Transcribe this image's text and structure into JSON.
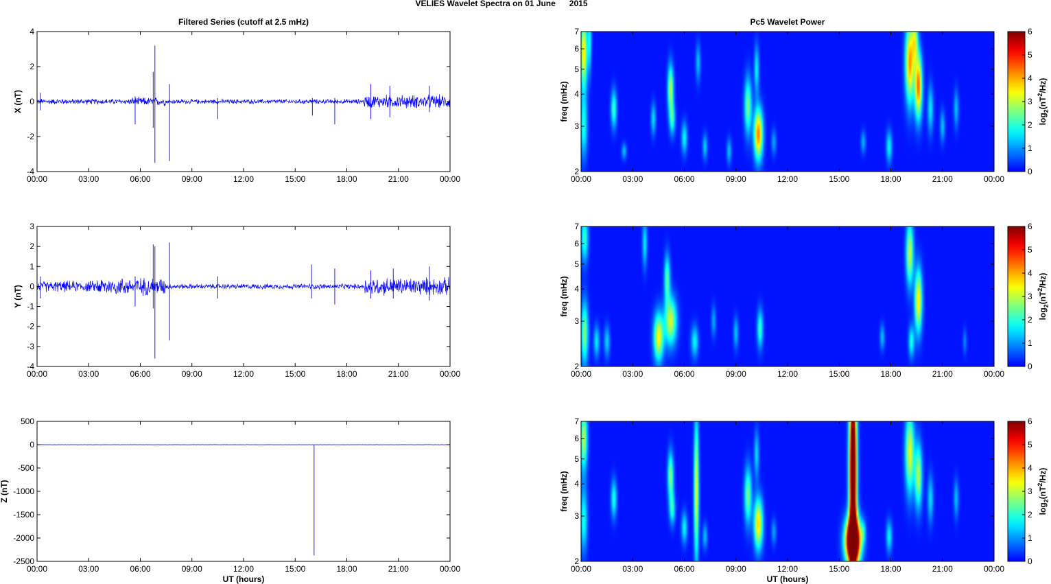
{
  "figure": {
    "title": "VELIES Wavelet Spectra on 01 June      2015",
    "left_title": "Filtered Series (cutoff at 2.5 mHz)",
    "right_title": "Pc5 Wavelet Power",
    "xlabel": "UT (hours)",
    "colors": {
      "series_line": "#0000ff",
      "spectrum_bg": "#00008f",
      "axis": "#000000"
    }
  },
  "chart_data": [
    {
      "type": "line",
      "title": "Filtered Series (cutoff at 2.5 mHz)",
      "ylabel": "X (nT)",
      "xlabel": "",
      "x_ticks": [
        "00:00",
        "03:00",
        "06:00",
        "09:00",
        "12:00",
        "15:00",
        "18:00",
        "21:00",
        "00:00"
      ],
      "xlim_hours": [
        0,
        24
      ],
      "ylim": [
        -4,
        4
      ],
      "y_ticks": [
        -4,
        -2,
        0,
        2,
        4
      ],
      "noise": [
        {
          "t0": 0,
          "t1": 5.5,
          "amp": 0.15
        },
        {
          "t0": 5.5,
          "t1": 7.5,
          "amp": 0.22
        },
        {
          "t0": 7.5,
          "t1": 19.0,
          "amp": 0.12
        },
        {
          "t0": 19.0,
          "t1": 24.0,
          "amp": 0.35
        }
      ],
      "spikes": [
        {
          "t": 0.2,
          "max": 0.5,
          "min": -0.5
        },
        {
          "t": 5.7,
          "max": 0.3,
          "min": -1.3
        },
        {
          "t": 6.75,
          "max": 1.7,
          "min": -1.5
        },
        {
          "t": 6.85,
          "max": 3.2,
          "min": -3.5
        },
        {
          "t": 7.7,
          "max": 1.0,
          "min": -3.4
        },
        {
          "t": 10.5,
          "max": 0.2,
          "min": -1.0
        },
        {
          "t": 16.0,
          "max": 0.2,
          "min": -0.8
        },
        {
          "t": 17.3,
          "max": 0.2,
          "min": -1.3
        },
        {
          "t": 19.4,
          "max": 1.0,
          "min": -1.0
        },
        {
          "t": 20.5,
          "max": 0.9,
          "min": -0.9
        },
        {
          "t": 22.8,
          "max": 0.9,
          "min": -0.6
        }
      ]
    },
    {
      "type": "line",
      "ylabel": "Y (nT)",
      "xlabel": "",
      "x_ticks": [
        "00:00",
        "03:00",
        "06:00",
        "09:00",
        "12:00",
        "15:00",
        "18:00",
        "21:00",
        "00:00"
      ],
      "xlim_hours": [
        0,
        24
      ],
      "ylim": [
        -4,
        3
      ],
      "y_ticks": [
        -4,
        -3,
        -2,
        -1,
        0,
        1,
        2,
        3
      ],
      "noise": [
        {
          "t0": 0,
          "t1": 3.5,
          "amp": 0.25
        },
        {
          "t0": 3.5,
          "t1": 7.5,
          "amp": 0.4
        },
        {
          "t0": 7.5,
          "t1": 19.0,
          "amp": 0.12
        },
        {
          "t0": 19.0,
          "t1": 24.0,
          "amp": 0.4
        }
      ],
      "spikes": [
        {
          "t": 0.2,
          "max": 0.5,
          "min": -0.6
        },
        {
          "t": 5.7,
          "max": 0.5,
          "min": -1.0
        },
        {
          "t": 6.75,
          "max": 2.1,
          "min": -1.1
        },
        {
          "t": 6.85,
          "max": 2.0,
          "min": -3.6
        },
        {
          "t": 7.7,
          "max": 2.2,
          "min": -2.7
        },
        {
          "t": 10.5,
          "max": 0.5,
          "min": -0.6
        },
        {
          "t": 15.95,
          "max": 1.1,
          "min": -0.6
        },
        {
          "t": 17.3,
          "max": 0.9,
          "min": -0.9
        },
        {
          "t": 19.4,
          "max": 0.8,
          "min": -0.6
        },
        {
          "t": 20.7,
          "max": 0.9,
          "min": -0.6
        },
        {
          "t": 22.8,
          "max": 1.0,
          "min": -0.7
        }
      ]
    },
    {
      "type": "line",
      "ylabel": "Z (nT)",
      "xlabel": "UT (hours)",
      "x_ticks": [
        "00:00",
        "03:00",
        "06:00",
        "09:00",
        "12:00",
        "15:00",
        "18:00",
        "21:00",
        "00:00"
      ],
      "xlim_hours": [
        0,
        24
      ],
      "ylim": [
        -2500,
        500
      ],
      "y_ticks": [
        -2500,
        -2000,
        -1500,
        -1000,
        -500,
        0,
        500
      ],
      "noise": [
        {
          "t0": 0,
          "t1": 24,
          "amp": 2
        }
      ],
      "spikes": [
        {
          "t": 16.1,
          "max": 0,
          "min": -2370
        }
      ]
    },
    {
      "type": "heatmap",
      "title": "Pc5 Wavelet Power",
      "ylabel": "freq (mHz)",
      "xlabel": "",
      "x_ticks": [
        "00:00",
        "03:00",
        "06:00",
        "09:00",
        "12:00",
        "15:00",
        "18:00",
        "21:00",
        "00:00"
      ],
      "xlim_hours": [
        0,
        24
      ],
      "ylim": [
        2,
        7
      ],
      "y_scale": "log",
      "y_ticks": [
        2,
        3,
        4,
        5,
        6,
        7
      ],
      "colorbar": {
        "label": "log2(nT2/Hz)",
        "range": [
          0,
          6
        ],
        "ticks": [
          0,
          1,
          2,
          3,
          4,
          5,
          6
        ],
        "colormap": "jet"
      },
      "blobs": [
        {
          "t": 0.15,
          "f": 5.8,
          "dt": 0.15,
          "df": 0.22,
          "p": 3.5
        },
        {
          "t": 0.15,
          "f": 3.0,
          "dt": 0.15,
          "df": 0.2,
          "p": 1.8
        },
        {
          "t": 0.5,
          "f": 6.5,
          "dt": 0.08,
          "df": 0.2,
          "p": 1.5
        },
        {
          "t": 1.9,
          "f": 3.5,
          "dt": 0.12,
          "df": 0.12,
          "p": 2.0
        },
        {
          "t": 2.5,
          "f": 2.4,
          "dt": 0.1,
          "df": 0.05,
          "p": 1.2
        },
        {
          "t": 4.2,
          "f": 3.2,
          "dt": 0.1,
          "df": 0.1,
          "p": 1.4
        },
        {
          "t": 5.2,
          "f": 4.2,
          "dt": 0.12,
          "df": 0.15,
          "p": 2.8
        },
        {
          "t": 5.3,
          "f": 3.2,
          "dt": 0.12,
          "df": 0.1,
          "p": 1.8
        },
        {
          "t": 6.0,
          "f": 2.7,
          "dt": 0.12,
          "df": 0.1,
          "p": 1.6
        },
        {
          "t": 6.8,
          "f": 5.3,
          "dt": 0.1,
          "df": 0.12,
          "p": 1.2
        },
        {
          "t": 7.2,
          "f": 2.5,
          "dt": 0.1,
          "df": 0.08,
          "p": 1.3
        },
        {
          "t": 8.6,
          "f": 2.4,
          "dt": 0.1,
          "df": 0.08,
          "p": 1.2
        },
        {
          "t": 9.7,
          "f": 3.6,
          "dt": 0.15,
          "df": 0.18,
          "p": 2.4
        },
        {
          "t": 10.3,
          "f": 2.8,
          "dt": 0.18,
          "df": 0.16,
          "p": 4.2
        },
        {
          "t": 10.2,
          "f": 5.0,
          "dt": 0.1,
          "df": 0.15,
          "p": 1.6
        },
        {
          "t": 11.2,
          "f": 2.6,
          "dt": 0.1,
          "df": 0.08,
          "p": 1.0
        },
        {
          "t": 16.4,
          "f": 2.6,
          "dt": 0.1,
          "df": 0.07,
          "p": 1.1
        },
        {
          "t": 17.9,
          "f": 2.5,
          "dt": 0.12,
          "df": 0.1,
          "p": 1.6
        },
        {
          "t": 19.1,
          "f": 5.3,
          "dt": 0.18,
          "df": 0.25,
          "p": 4.0
        },
        {
          "t": 19.6,
          "f": 4.3,
          "dt": 0.15,
          "df": 0.2,
          "p": 4.3
        },
        {
          "t": 19.4,
          "f": 6.5,
          "dt": 0.12,
          "df": 0.15,
          "p": 2.5
        },
        {
          "t": 20.3,
          "f": 3.5,
          "dt": 0.12,
          "df": 0.15,
          "p": 1.5
        },
        {
          "t": 21.0,
          "f": 3.0,
          "dt": 0.1,
          "df": 0.1,
          "p": 1.2
        },
        {
          "t": 21.8,
          "f": 3.5,
          "dt": 0.1,
          "df": 0.12,
          "p": 1.2
        }
      ]
    },
    {
      "type": "heatmap",
      "ylabel": "freq (mHz)",
      "xlabel": "",
      "x_ticks": [
        "00:00",
        "03:00",
        "06:00",
        "09:00",
        "12:00",
        "15:00",
        "18:00",
        "21:00",
        "00:00"
      ],
      "xlim_hours": [
        0,
        24
      ],
      "ylim": [
        2,
        7
      ],
      "y_scale": "log",
      "y_ticks": [
        2,
        3,
        4,
        5,
        6,
        7
      ],
      "colorbar": {
        "label": "log2(nT2/Hz)",
        "range": [
          0,
          6
        ],
        "ticks": [
          0,
          1,
          2,
          3,
          4,
          5,
          6
        ],
        "colormap": "jet"
      },
      "blobs": [
        {
          "t": 0.2,
          "f": 6.3,
          "dt": 0.15,
          "df": 0.15,
          "p": 2.0
        },
        {
          "t": 0.2,
          "f": 2.7,
          "dt": 0.15,
          "df": 0.2,
          "p": 2.5
        },
        {
          "t": 0.9,
          "f": 2.5,
          "dt": 0.12,
          "df": 0.1,
          "p": 1.5
        },
        {
          "t": 1.5,
          "f": 2.5,
          "dt": 0.12,
          "df": 0.1,
          "p": 1.3
        },
        {
          "t": 3.7,
          "f": 6.0,
          "dt": 0.1,
          "df": 0.15,
          "p": 1.5
        },
        {
          "t": 4.5,
          "f": 2.6,
          "dt": 0.2,
          "df": 0.15,
          "p": 3.3
        },
        {
          "t": 5.2,
          "f": 3.0,
          "dt": 0.25,
          "df": 0.15,
          "p": 3.0
        },
        {
          "t": 5.0,
          "f": 4.4,
          "dt": 0.12,
          "df": 0.15,
          "p": 2.2
        },
        {
          "t": 6.6,
          "f": 2.5,
          "dt": 0.15,
          "df": 0.1,
          "p": 1.6
        },
        {
          "t": 7.7,
          "f": 3.0,
          "dt": 0.1,
          "df": 0.1,
          "p": 1.0
        },
        {
          "t": 9.0,
          "f": 2.7,
          "dt": 0.1,
          "df": 0.1,
          "p": 1.2
        },
        {
          "t": 10.4,
          "f": 2.8,
          "dt": 0.12,
          "df": 0.12,
          "p": 2.0
        },
        {
          "t": 17.5,
          "f": 2.6,
          "dt": 0.1,
          "df": 0.08,
          "p": 1.2
        },
        {
          "t": 19.1,
          "f": 5.5,
          "dt": 0.15,
          "df": 0.2,
          "p": 3.0
        },
        {
          "t": 19.6,
          "f": 3.6,
          "dt": 0.15,
          "df": 0.2,
          "p": 3.5
        },
        {
          "t": 19.2,
          "f": 2.5,
          "dt": 0.12,
          "df": 0.1,
          "p": 1.8
        },
        {
          "t": 22.3,
          "f": 2.5,
          "dt": 0.08,
          "df": 0.08,
          "p": 0.8
        }
      ]
    },
    {
      "type": "heatmap",
      "ylabel": "freq (mHz)",
      "xlabel": "UT (hours)",
      "x_ticks": [
        "00:00",
        "03:00",
        "06:00",
        "09:00",
        "12:00",
        "15:00",
        "18:00",
        "21:00",
        "00:00"
      ],
      "xlim_hours": [
        0,
        24
      ],
      "ylim": [
        2,
        7
      ],
      "y_scale": "log",
      "y_ticks": [
        2,
        3,
        4,
        5,
        6,
        7
      ],
      "colorbar": {
        "label": "log2(nT2/Hz)",
        "range": [
          0,
          6
        ],
        "ticks": [
          0,
          1,
          2,
          3,
          4,
          5,
          6
        ],
        "colormap": "jet"
      },
      "blobs": [
        {
          "t": 0.15,
          "f": 6.0,
          "dt": 0.15,
          "df": 0.2,
          "p": 2.8
        },
        {
          "t": 0.15,
          "f": 2.9,
          "dt": 0.15,
          "df": 0.2,
          "p": 1.8
        },
        {
          "t": 1.9,
          "f": 3.5,
          "dt": 0.12,
          "df": 0.12,
          "p": 1.8
        },
        {
          "t": 5.2,
          "f": 4.3,
          "dt": 0.12,
          "df": 0.15,
          "p": 2.5
        },
        {
          "t": 5.3,
          "f": 3.2,
          "dt": 0.12,
          "df": 0.1,
          "p": 1.8
        },
        {
          "t": 6.0,
          "f": 2.7,
          "dt": 0.12,
          "df": 0.1,
          "p": 1.6
        },
        {
          "t": 6.7,
          "f": 3.8,
          "dt": 0.1,
          "df": 0.45,
          "p": 3.2
        },
        {
          "t": 7.2,
          "f": 2.5,
          "dt": 0.1,
          "df": 0.08,
          "p": 1.2
        },
        {
          "t": 9.7,
          "f": 3.6,
          "dt": 0.15,
          "df": 0.18,
          "p": 2.4
        },
        {
          "t": 10.3,
          "f": 2.8,
          "dt": 0.18,
          "df": 0.16,
          "p": 3.6
        },
        {
          "t": 10.2,
          "f": 5.2,
          "dt": 0.1,
          "df": 0.15,
          "p": 1.4
        },
        {
          "t": 11.2,
          "f": 2.6,
          "dt": 0.1,
          "df": 0.08,
          "p": 1.0
        },
        {
          "t": 15.8,
          "f": 2.4,
          "dt": 0.3,
          "df": 0.14,
          "p": 9.0
        },
        {
          "t": 15.8,
          "f": 4.5,
          "dt": 0.15,
          "df": 0.6,
          "p": 8.0
        },
        {
          "t": 16.4,
          "f": 2.6,
          "dt": 0.1,
          "df": 0.07,
          "p": 1.2
        },
        {
          "t": 17.9,
          "f": 2.5,
          "dt": 0.12,
          "df": 0.1,
          "p": 1.6
        },
        {
          "t": 19.1,
          "f": 5.3,
          "dt": 0.18,
          "df": 0.25,
          "p": 3.2
        },
        {
          "t": 19.6,
          "f": 4.3,
          "dt": 0.15,
          "df": 0.2,
          "p": 2.8
        },
        {
          "t": 20.3,
          "f": 3.5,
          "dt": 0.12,
          "df": 0.15,
          "p": 1.4
        },
        {
          "t": 21.8,
          "f": 3.5,
          "dt": 0.1,
          "df": 0.12,
          "p": 1.2
        }
      ]
    }
  ]
}
